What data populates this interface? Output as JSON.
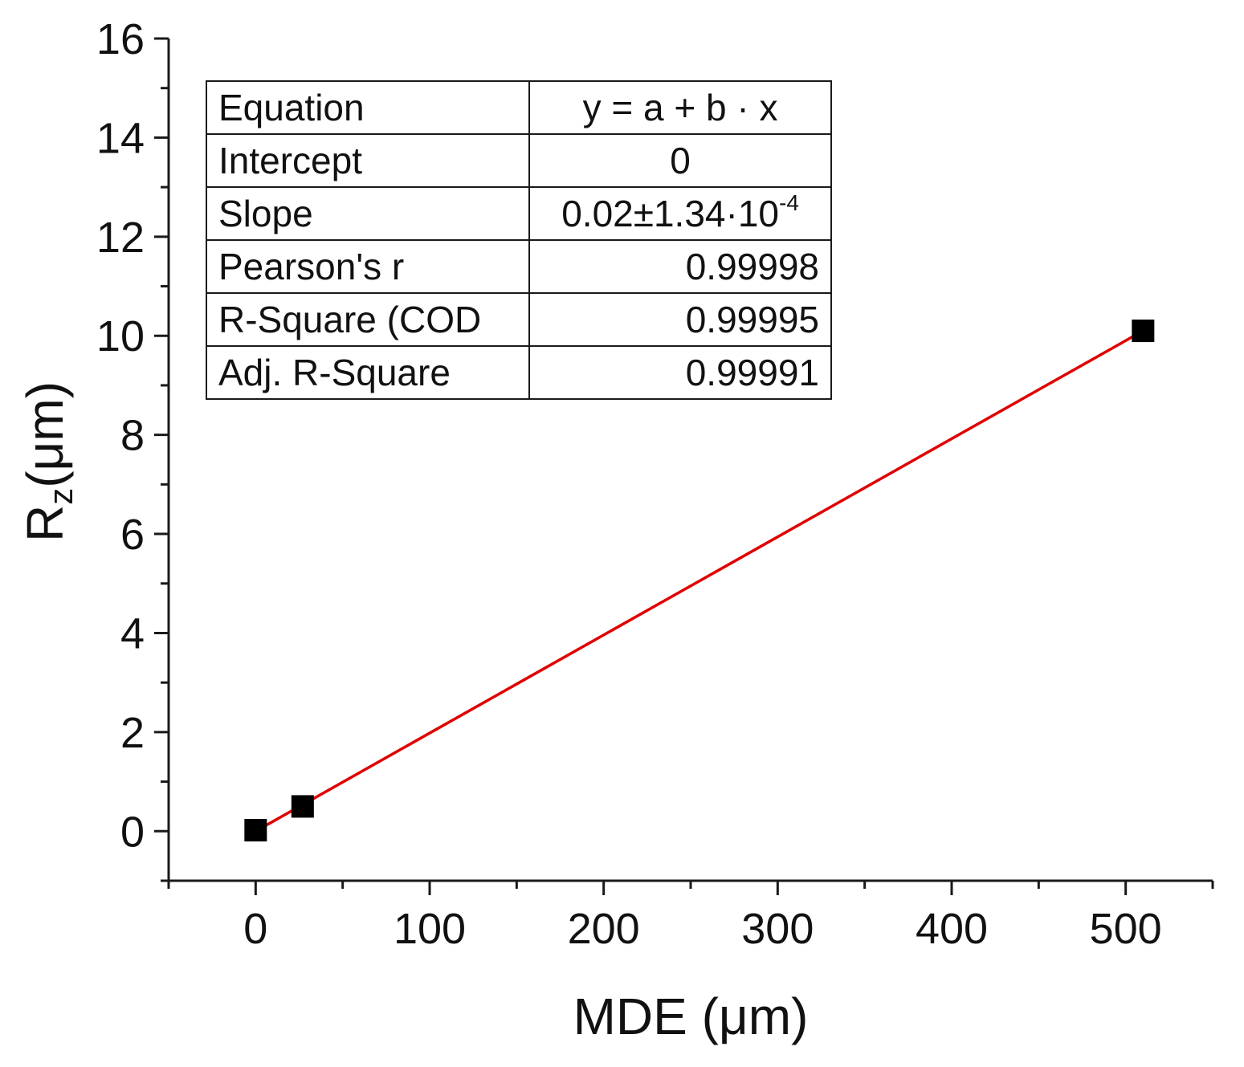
{
  "chart_data": {
    "type": "scatter",
    "xlabel_main": "MDE (",
    "xlabel_unit": "μm",
    "xlabel_close": ")",
    "ylabel_main": "R",
    "ylabel_sub": "z",
    "ylabel_unit": "(μm)",
    "xlim": [
      -50,
      550
    ],
    "ylim": [
      -1,
      16
    ],
    "x_ticks": [
      0,
      100,
      200,
      300,
      400,
      500
    ],
    "y_ticks": [
      0,
      2,
      4,
      6,
      8,
      10,
      12,
      14,
      16
    ],
    "points": [
      {
        "x": 0,
        "y": 0.02
      },
      {
        "x": 27,
        "y": 0.5
      },
      {
        "x": 510,
        "y": 10.1
      }
    ],
    "fit_line": {
      "x": [
        0,
        510
      ],
      "y": [
        0,
        10.1
      ],
      "color": "#e00000"
    },
    "marker_color": "#000000",
    "fit_table": {
      "rows": [
        {
          "label": "Equation",
          "value": "y = a + b · x"
        },
        {
          "label": "Intercept",
          "value": "0"
        },
        {
          "label": "Slope",
          "value": "0.02±1.34·10",
          "value_exp": "-4"
        },
        {
          "label": "Pearson's r",
          "value": "0.99998"
        },
        {
          "label": "R-Square (COD",
          "value": "0.99995"
        },
        {
          "label": "Adj. R-Square",
          "value": "0.99991"
        }
      ]
    }
  }
}
